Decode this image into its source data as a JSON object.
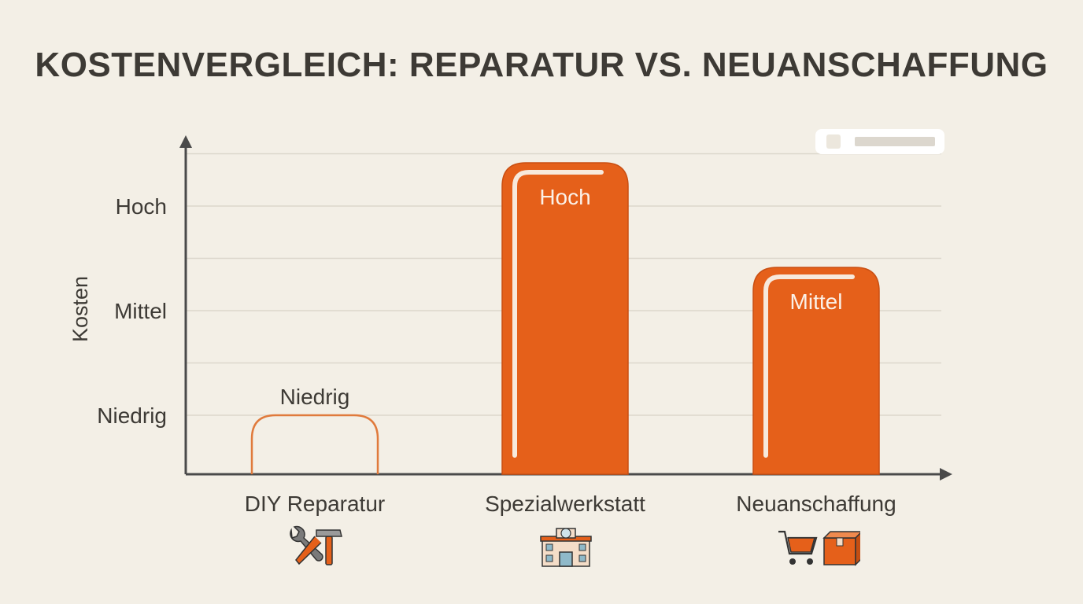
{
  "chart_data": {
    "type": "bar",
    "title": "KOSTENVERGLEICH: REPARATUR VS. NEUANSCHAFFUNG",
    "ylabel": "Kosten",
    "xlabel": "",
    "yticks": [
      "Niedrig",
      "Mittel",
      "Hoch"
    ],
    "ylim": [
      0,
      3.5
    ],
    "grid": true,
    "categories": [
      "DIY Reparatur",
      "Spezialwerkstatt",
      "Neuanschaffung"
    ],
    "values": [
      1,
      3,
      2
    ],
    "data_labels": [
      "Niedrig",
      "Hoch",
      "Mittel"
    ],
    "bar_styles": [
      "outline",
      "filled",
      "filled"
    ],
    "colors": {
      "bar": "#e5601a",
      "outline": "#e07a3c",
      "axis": "#4a4a4a",
      "grid": "#dcd7cc",
      "text": "#3d3a35",
      "highlight": "#f7e9dc"
    },
    "category_icons": [
      "wrench-hammer-icon",
      "workshop-building-icon",
      "cart-box-icon"
    ]
  }
}
